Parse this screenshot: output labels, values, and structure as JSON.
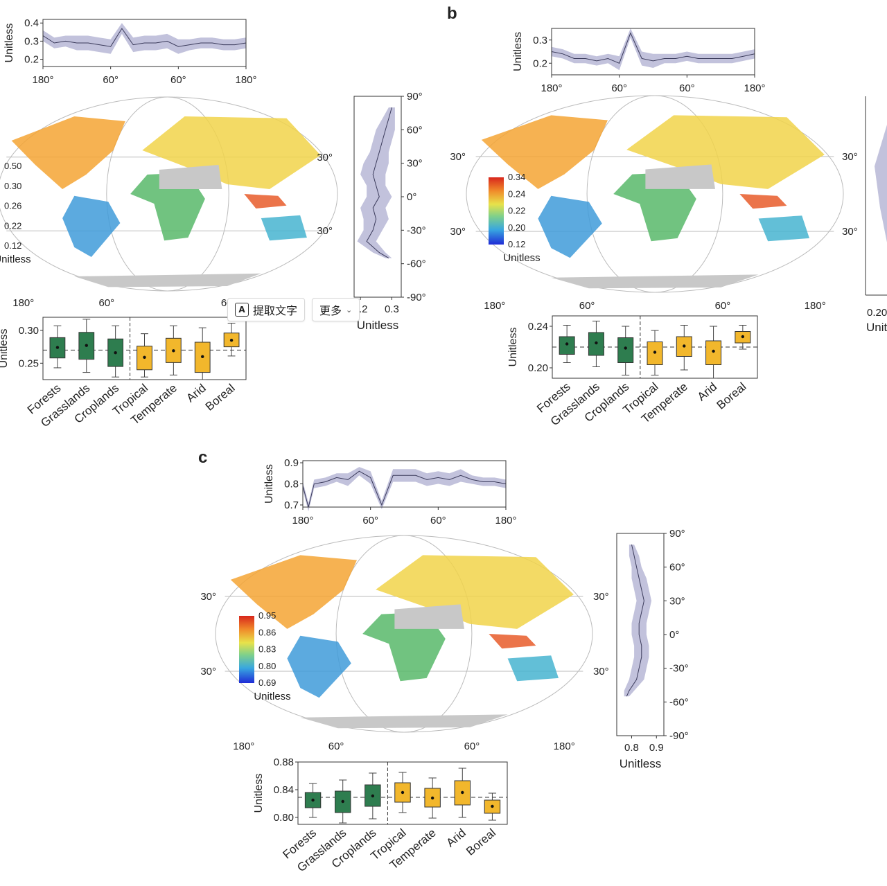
{
  "panels": {
    "b": {
      "label": "b"
    },
    "c": {
      "label": "c"
    }
  },
  "ocr_toolbar": {
    "extract_label": "提取文字",
    "more_label": "更多",
    "extract_icon": "text-extract-icon",
    "more_icon": "chevron-down-icon"
  },
  "colors": {
    "green": "#2e7d4f",
    "yellow": "#f2b72c",
    "band": "#b7b7d6",
    "line": "#3a3a5a",
    "land_gray": "#c8c8c8"
  },
  "chart_data": [
    {
      "type": "line",
      "panel": "a",
      "role": "longitude-profile",
      "ylabel": "Unitless",
      "yticks": [
        "0.2",
        "0.3",
        "0.4"
      ],
      "ylim": [
        0.16,
        0.42
      ],
      "xticks": [
        "180°",
        "60°",
        "60°",
        "180°"
      ],
      "x": [
        -180,
        -160,
        -140,
        -120,
        -100,
        -80,
        -60,
        -40,
        -20,
        0,
        20,
        40,
        60,
        80,
        100,
        120,
        140,
        160,
        180
      ],
      "series": [
        {
          "values": [
            0.33,
            0.29,
            0.3,
            0.29,
            0.29,
            0.28,
            0.27,
            0.37,
            0.28,
            0.29,
            0.29,
            0.3,
            0.27,
            0.28,
            0.29,
            0.29,
            0.28,
            0.28,
            0.29
          ],
          "spread": [
            0.03,
            0.03,
            0.03,
            0.04,
            0.04,
            0.04,
            0.04,
            0.03,
            0.04,
            0.04,
            0.04,
            0.04,
            0.04,
            0.03,
            0.03,
            0.03,
            0.03,
            0.03,
            0.03
          ]
        }
      ]
    },
    {
      "type": "line",
      "panel": "a",
      "role": "latitude-profile",
      "xlabel": "Unitless",
      "xticks": [
        "0.2",
        "0.3"
      ],
      "xlim": [
        0.18,
        0.33
      ],
      "yticks": [
        "90°",
        "60°",
        "30°",
        "0°",
        "-30°",
        "-60°",
        "-90°"
      ],
      "lat": [
        80,
        70,
        60,
        50,
        40,
        30,
        20,
        10,
        0,
        -10,
        -20,
        -30,
        -40,
        -50,
        -55
      ],
      "series": [
        {
          "values": [
            0.3,
            0.29,
            0.28,
            0.27,
            0.26,
            0.25,
            0.24,
            0.25,
            0.26,
            0.24,
            0.25,
            0.24,
            0.22,
            0.26,
            0.29
          ],
          "spread": [
            0.01,
            0.02,
            0.03,
            0.03,
            0.03,
            0.04,
            0.04,
            0.03,
            0.04,
            0.04,
            0.04,
            0.03,
            0.03,
            0.02,
            0.01
          ]
        }
      ]
    },
    {
      "type": "heatmap",
      "panel": "a",
      "role": "global-map",
      "colorbar_ticks": [
        "0.50",
        "0.30",
        "0.26",
        "0.22",
        "0.12"
      ],
      "colorbar_label": "Unitless",
      "lat_labels": [
        "30°",
        "30°"
      ],
      "lon_labels": [
        "180°",
        "60°",
        "60°"
      ]
    },
    {
      "type": "box",
      "panel": "a",
      "role": "category-boxplot",
      "ylabel": "Unitless",
      "yticks": [
        "0.25",
        "0.30"
      ],
      "ylim": [
        0.225,
        0.32
      ],
      "reference": 0.27,
      "categories": [
        "Forests",
        "Grasslands",
        "Croplands",
        "Tropical",
        "Temperate",
        "Arid",
        "Boreal"
      ],
      "groups": [
        "land-cover",
        "land-cover",
        "land-cover",
        "climate",
        "climate",
        "climate",
        "climate"
      ],
      "stats": [
        {
          "min": 0.243,
          "q1": 0.258,
          "median": 0.273,
          "q3": 0.289,
          "max": 0.307,
          "mean": 0.274
        },
        {
          "min": 0.236,
          "q1": 0.256,
          "median": 0.276,
          "q3": 0.297,
          "max": 0.317,
          "mean": 0.277
        },
        {
          "min": 0.229,
          "q1": 0.245,
          "median": 0.265,
          "q3": 0.287,
          "max": 0.307,
          "mean": 0.266
        },
        {
          "min": 0.229,
          "q1": 0.24,
          "median": 0.258,
          "q3": 0.276,
          "max": 0.295,
          "mean": 0.259
        },
        {
          "min": 0.232,
          "q1": 0.251,
          "median": 0.268,
          "q3": 0.288,
          "max": 0.307,
          "mean": 0.269
        },
        {
          "min": 0.225,
          "q1": 0.236,
          "median": 0.258,
          "q3": 0.282,
          "max": 0.304,
          "mean": 0.26
        },
        {
          "min": 0.261,
          "q1": 0.275,
          "median": 0.285,
          "q3": 0.296,
          "max": 0.311,
          "mean": 0.285
        }
      ]
    },
    {
      "type": "line",
      "panel": "b",
      "role": "longitude-profile",
      "ylabel": "Unitless",
      "yticks": [
        "0.2",
        "0.3"
      ],
      "ylim": [
        0.15,
        0.35
      ],
      "xticks": [
        "180°",
        "60°",
        "60°",
        "180°"
      ],
      "x": [
        -180,
        -160,
        -140,
        -120,
        -100,
        -80,
        -60,
        -40,
        -20,
        0,
        20,
        40,
        60,
        80,
        100,
        120,
        140,
        160,
        180
      ],
      "series": [
        {
          "values": [
            0.25,
            0.24,
            0.22,
            0.22,
            0.21,
            0.22,
            0.2,
            0.33,
            0.22,
            0.21,
            0.22,
            0.22,
            0.23,
            0.22,
            0.22,
            0.22,
            0.22,
            0.23,
            0.24
          ],
          "spread": [
            0.02,
            0.02,
            0.02,
            0.02,
            0.02,
            0.02,
            0.03,
            0.02,
            0.03,
            0.03,
            0.02,
            0.02,
            0.02,
            0.02,
            0.02,
            0.02,
            0.02,
            0.02,
            0.02
          ]
        }
      ]
    },
    {
      "type": "heatmap",
      "panel": "b",
      "role": "global-map",
      "colorbar_ticks": [
        "0.34",
        "0.24",
        "0.22",
        "0.20",
        "0.12"
      ],
      "colorbar_label": "Unitless",
      "lat_labels": [
        "30°",
        "30°",
        "30°",
        "30°"
      ],
      "lon_labels": [
        "180°",
        "60°",
        "60°",
        "180°"
      ]
    },
    {
      "type": "line",
      "panel": "b",
      "role": "latitude-profile-partial",
      "xlabel": "Unit",
      "xticks": [
        "0.20"
      ]
    },
    {
      "type": "box",
      "panel": "b",
      "role": "category-boxplot",
      "ylabel": "Unitless",
      "yticks": [
        "0.20",
        "0.24"
      ],
      "ylim": [
        0.19,
        0.25
      ],
      "reference": 0.22,
      "categories": [
        "Forests",
        "Grasslands",
        "Croplands",
        "Tropical",
        "Temperate",
        "Arid",
        "Boreal"
      ],
      "groups": [
        "land-cover",
        "land-cover",
        "land-cover",
        "climate",
        "climate",
        "climate",
        "climate"
      ],
      "stats": [
        {
          "min": 0.205,
          "q1": 0.213,
          "median": 0.221,
          "q3": 0.23,
          "max": 0.241,
          "mean": 0.223
        },
        {
          "min": 0.201,
          "q1": 0.212,
          "median": 0.222,
          "q3": 0.234,
          "max": 0.245,
          "mean": 0.224
        },
        {
          "min": 0.193,
          "q1": 0.205,
          "median": 0.218,
          "q3": 0.229,
          "max": 0.24,
          "mean": 0.219
        },
        {
          "min": 0.193,
          "q1": 0.203,
          "median": 0.214,
          "q3": 0.225,
          "max": 0.236,
          "mean": 0.215
        },
        {
          "min": 0.198,
          "q1": 0.211,
          "median": 0.22,
          "q3": 0.23,
          "max": 0.241,
          "mean": 0.221
        },
        {
          "min": 0.19,
          "q1": 0.203,
          "median": 0.215,
          "q3": 0.226,
          "max": 0.24,
          "mean": 0.216
        },
        {
          "min": 0.218,
          "q1": 0.224,
          "median": 0.23,
          "q3": 0.235,
          "max": 0.241,
          "mean": 0.23
        }
      ]
    },
    {
      "type": "line",
      "panel": "c",
      "role": "longitude-profile",
      "ylabel": "Unitless",
      "yticks": [
        "0.7",
        "0.8",
        "0.9"
      ],
      "ylim": [
        0.69,
        0.91
      ],
      "xticks": [
        "180°",
        "60°",
        "60°",
        "180°"
      ],
      "x": [
        -180,
        -170,
        -160,
        -140,
        -120,
        -100,
        -80,
        -60,
        -40,
        -20,
        0,
        20,
        40,
        60,
        80,
        100,
        120,
        140,
        160,
        180
      ],
      "series": [
        {
          "values": [
            0.79,
            0.69,
            0.8,
            0.81,
            0.83,
            0.82,
            0.86,
            0.83,
            0.7,
            0.84,
            0.84,
            0.84,
            0.82,
            0.83,
            0.82,
            0.84,
            0.82,
            0.81,
            0.81,
            0.8
          ],
          "spread": [
            0.02,
            0.02,
            0.02,
            0.02,
            0.02,
            0.03,
            0.02,
            0.03,
            0.02,
            0.03,
            0.03,
            0.03,
            0.03,
            0.03,
            0.03,
            0.03,
            0.02,
            0.02,
            0.02,
            0.02
          ]
        }
      ]
    },
    {
      "type": "line",
      "panel": "c",
      "role": "latitude-profile",
      "xlabel": "Unitless",
      "xticks": [
        "0.8",
        "0.9"
      ],
      "xlim": [
        0.74,
        0.93
      ],
      "yticks": [
        "90°",
        "60°",
        "30°",
        "0°",
        "-30°",
        "-60°",
        "-90°"
      ],
      "lat": [
        80,
        70,
        60,
        50,
        40,
        30,
        20,
        10,
        0,
        -10,
        -20,
        -30,
        -40,
        -50,
        -55
      ],
      "series": [
        {
          "values": [
            0.8,
            0.81,
            0.82,
            0.83,
            0.84,
            0.85,
            0.84,
            0.83,
            0.83,
            0.84,
            0.84,
            0.83,
            0.82,
            0.79,
            0.78
          ],
          "spread": [
            0.01,
            0.02,
            0.02,
            0.03,
            0.03,
            0.03,
            0.03,
            0.03,
            0.03,
            0.03,
            0.03,
            0.03,
            0.03,
            0.02,
            0.01
          ]
        }
      ]
    },
    {
      "type": "heatmap",
      "panel": "c",
      "role": "global-map",
      "colorbar_ticks": [
        "0.95",
        "0.86",
        "0.83",
        "0.80",
        "0.69"
      ],
      "colorbar_label": "Unitless",
      "lat_labels": [
        "30°",
        "30°",
        "30°",
        "30°"
      ],
      "lon_labels": [
        "180°",
        "60°",
        "60°",
        "180°"
      ]
    },
    {
      "type": "box",
      "panel": "c",
      "role": "category-boxplot",
      "ylabel": "Unitless",
      "yticks": [
        "0.80",
        "0.84",
        "0.88"
      ],
      "ylim": [
        0.79,
        0.88
      ],
      "reference": 0.829,
      "categories": [
        "Forests",
        "Grasslands",
        "Croplands",
        "Tropical",
        "Temperate",
        "Arid",
        "Boreal"
      ],
      "groups": [
        "land-cover",
        "land-cover",
        "land-cover",
        "climate",
        "climate",
        "climate",
        "climate"
      ],
      "stats": [
        {
          "min": 0.8,
          "q1": 0.814,
          "median": 0.824,
          "q3": 0.836,
          "max": 0.849,
          "mean": 0.825
        },
        {
          "min": 0.792,
          "q1": 0.807,
          "median": 0.823,
          "q3": 0.838,
          "max": 0.854,
          "mean": 0.823
        },
        {
          "min": 0.798,
          "q1": 0.816,
          "median": 0.831,
          "q3": 0.847,
          "max": 0.864,
          "mean": 0.831
        },
        {
          "min": 0.807,
          "q1": 0.822,
          "median": 0.836,
          "q3": 0.85,
          "max": 0.865,
          "mean": 0.836
        },
        {
          "min": 0.799,
          "q1": 0.815,
          "median": 0.828,
          "q3": 0.842,
          "max": 0.857,
          "mean": 0.828
        },
        {
          "min": 0.8,
          "q1": 0.818,
          "median": 0.836,
          "q3": 0.853,
          "max": 0.871,
          "mean": 0.836
        },
        {
          "min": 0.796,
          "q1": 0.806,
          "median": 0.816,
          "q3": 0.825,
          "max": 0.835,
          "mean": 0.816
        }
      ]
    }
  ]
}
